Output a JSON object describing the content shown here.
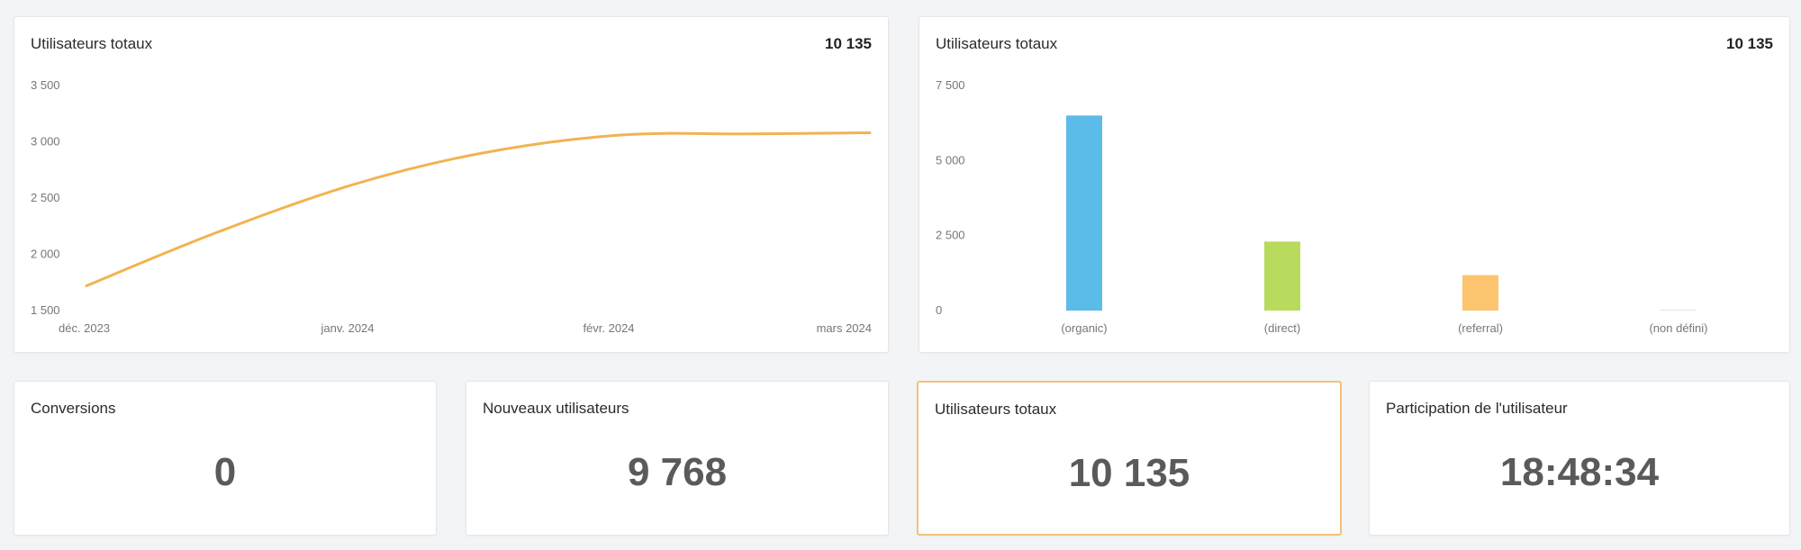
{
  "colors": {
    "line": "#f2b350",
    "bar_organic": "#5bbbe9",
    "bar_direct": "#b8db5d",
    "bar_referral": "#fcc46f",
    "highlight_border": "#f2c27a"
  },
  "line_card": {
    "title": "Utilisateurs totaux",
    "value": "10 135"
  },
  "bar_card": {
    "title": "Utilisateurs totaux",
    "value": "10 135"
  },
  "chart_data": [
    {
      "type": "line",
      "title": "Utilisateurs totaux",
      "x_tick_labels": [
        "déc. 2023",
        "janv. 2024",
        "févr. 2024",
        "mars 2024"
      ],
      "y_tick_labels": [
        "3 500",
        "3 000",
        "2 500",
        "2 000",
        "1 500"
      ],
      "ylim": [
        1500,
        3500
      ],
      "grid": false,
      "series": [
        {
          "x": [
            "2023-12-01",
            "2023-12-16",
            "2024-01-01",
            "2024-01-16",
            "2024-02-01",
            "2024-02-16",
            "2024-03-01"
          ],
          "y": [
            1720,
            2190,
            2620,
            2900,
            3060,
            3070,
            3080
          ]
        }
      ]
    },
    {
      "type": "bar",
      "title": "Utilisateurs totaux",
      "categories": [
        "(organic)",
        "(direct)",
        "(referral)",
        "(non défini)"
      ],
      "values": [
        6500,
        2300,
        1180,
        20
      ],
      "y_tick_labels": [
        "7 500",
        "5 000",
        "2 500",
        "0"
      ],
      "ylim": [
        0,
        7500
      ],
      "grid": false
    }
  ],
  "kpis": [
    {
      "label": "Conversions",
      "value": "0"
    },
    {
      "label": "Nouveaux utilisateurs",
      "value": "9 768"
    },
    {
      "label": "Utilisateurs totaux",
      "value": "10 135"
    },
    {
      "label": "Participation de l'utilisateur",
      "value": "18:48:34"
    }
  ]
}
